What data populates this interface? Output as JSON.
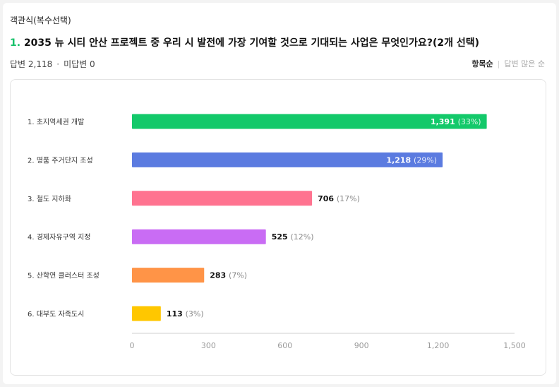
{
  "question": {
    "type_label": "객관식(복수선택)",
    "number": "1.",
    "title": "2035 뉴 시티 안산 프로젝트 중 우리 시 발전에 가장 기여할 것으로 기대되는 사업은 무엇인가요?(2개 선택)"
  },
  "stats": {
    "answers": "답변 2,118",
    "unanswered": "미답변 0"
  },
  "sort": {
    "by_item": "항목순",
    "by_answers": "답변 많은 순"
  },
  "chart_data": {
    "type": "bar",
    "orientation": "horizontal",
    "categories": [
      "1. 초지역세권 개발",
      "2. 명품 주거단지 조성",
      "3. 철도 지하화",
      "4. 경제자유구역 지정",
      "5. 산학연 클러스터 조성",
      "6. 대부도 자족도시"
    ],
    "values": [
      1391,
      1218,
      706,
      525,
      283,
      113
    ],
    "value_labels": [
      "1,391",
      "1,218",
      "706",
      "525",
      "283",
      "113"
    ],
    "percent_labels": [
      "(33%)",
      "(29%)",
      "(17%)",
      "(12%)",
      "(7%)",
      "(3%)"
    ],
    "colors": [
      "#13c96a",
      "#5b7be0",
      "#ff7390",
      "#c96cf4",
      "#ff9447",
      "#ffc700"
    ],
    "xlim": [
      0,
      1500
    ],
    "xticks": [
      0,
      300,
      600,
      900,
      1200,
      1500
    ],
    "xtick_labels": [
      "0",
      "300",
      "600",
      "900",
      "1,200",
      "1,500"
    ],
    "grid": false
  }
}
